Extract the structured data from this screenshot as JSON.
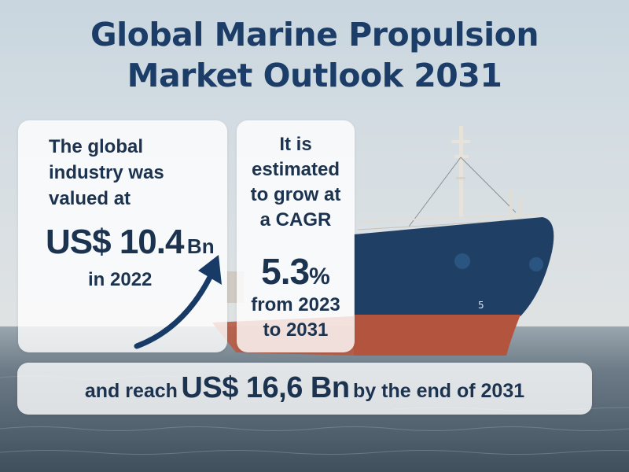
{
  "title": {
    "line1": "Global Marine Propulsion",
    "line2": "Market Outlook 2031"
  },
  "left_card": {
    "lines": [
      "The global",
      "industry was",
      "valued at"
    ],
    "value": "US$ 10.4",
    "unit": "Bn",
    "year": "in 2022"
  },
  "middle_card": {
    "lines": [
      "It is",
      "estimated",
      "to grow at",
      "a CAGR"
    ],
    "cagr_value": "5.3",
    "cagr_unit": "%",
    "period_lines": [
      "from 2023",
      "to 2031"
    ]
  },
  "bottom_banner": {
    "prefix": "and reach",
    "value": "US$ 16,6 Bn",
    "suffix": "by the end of 2031"
  },
  "colors": {
    "title": "#1c3d68",
    "text": "#1c3350",
    "arrow": "#173a66",
    "hull_blue": "#1f3f64",
    "hull_red": "#b3553e",
    "sea": "#5d6e7c"
  },
  "icons": {
    "arrow": "trend-up-arrow-icon"
  }
}
